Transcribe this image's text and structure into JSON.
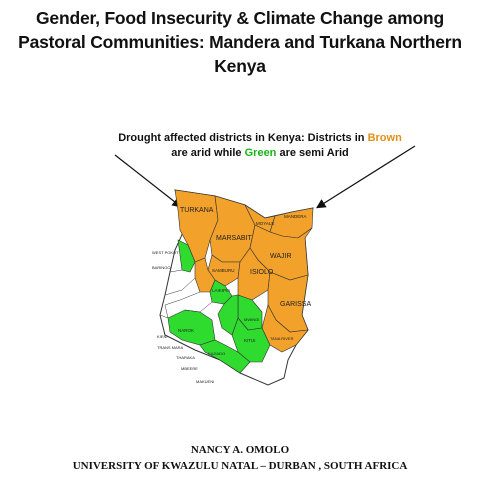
{
  "header": {
    "title_line1": "Gender, Food Insecurity & Climate Change among",
    "title_line2": "Pastoral Communities: Mandera and Turkana Northern",
    "title_line3": "Kenya"
  },
  "caption": {
    "part1": "Drought affected districts in Kenya: Districts in ",
    "brown_word": "Brown",
    "part2": "are arid while ",
    "green_word": "Green",
    "part3": " are semi Arid"
  },
  "map": {
    "colors": {
      "arid": "#f2a12a",
      "semi_arid": "#2edb2e",
      "other": "#ffffff",
      "border": "#333333"
    },
    "labels": {
      "turkana": "TURKANA",
      "marsabit": "MARSABIT",
      "moyale": "MOYALE",
      "mandera": "MANDERA",
      "wajir": "WAJIR",
      "west_pokot": "WEST POKOT",
      "baringo": "BARINGO",
      "samburu": "SAMBURU",
      "isiolo": "ISIOLO",
      "garissa": "GARISSA",
      "laikipia": "LAIKIPIA",
      "mwingi": "MWINGI",
      "narok": "NAROK",
      "kitui": "KITUI",
      "kajiado": "KAJIADO",
      "tana_river": "TANA RIVER",
      "kieni": "KIENI",
      "trans_mara": "TRANS MARA",
      "tharaka": "THARAKA",
      "mbeere": "MBEERE",
      "makueni": "MAKUENI"
    }
  },
  "footer": {
    "author": "NANCY A. OMOLO",
    "affiliation": "UNIVERSITY OF KWAZULU NATAL – DURBAN , SOUTH AFRICA"
  }
}
